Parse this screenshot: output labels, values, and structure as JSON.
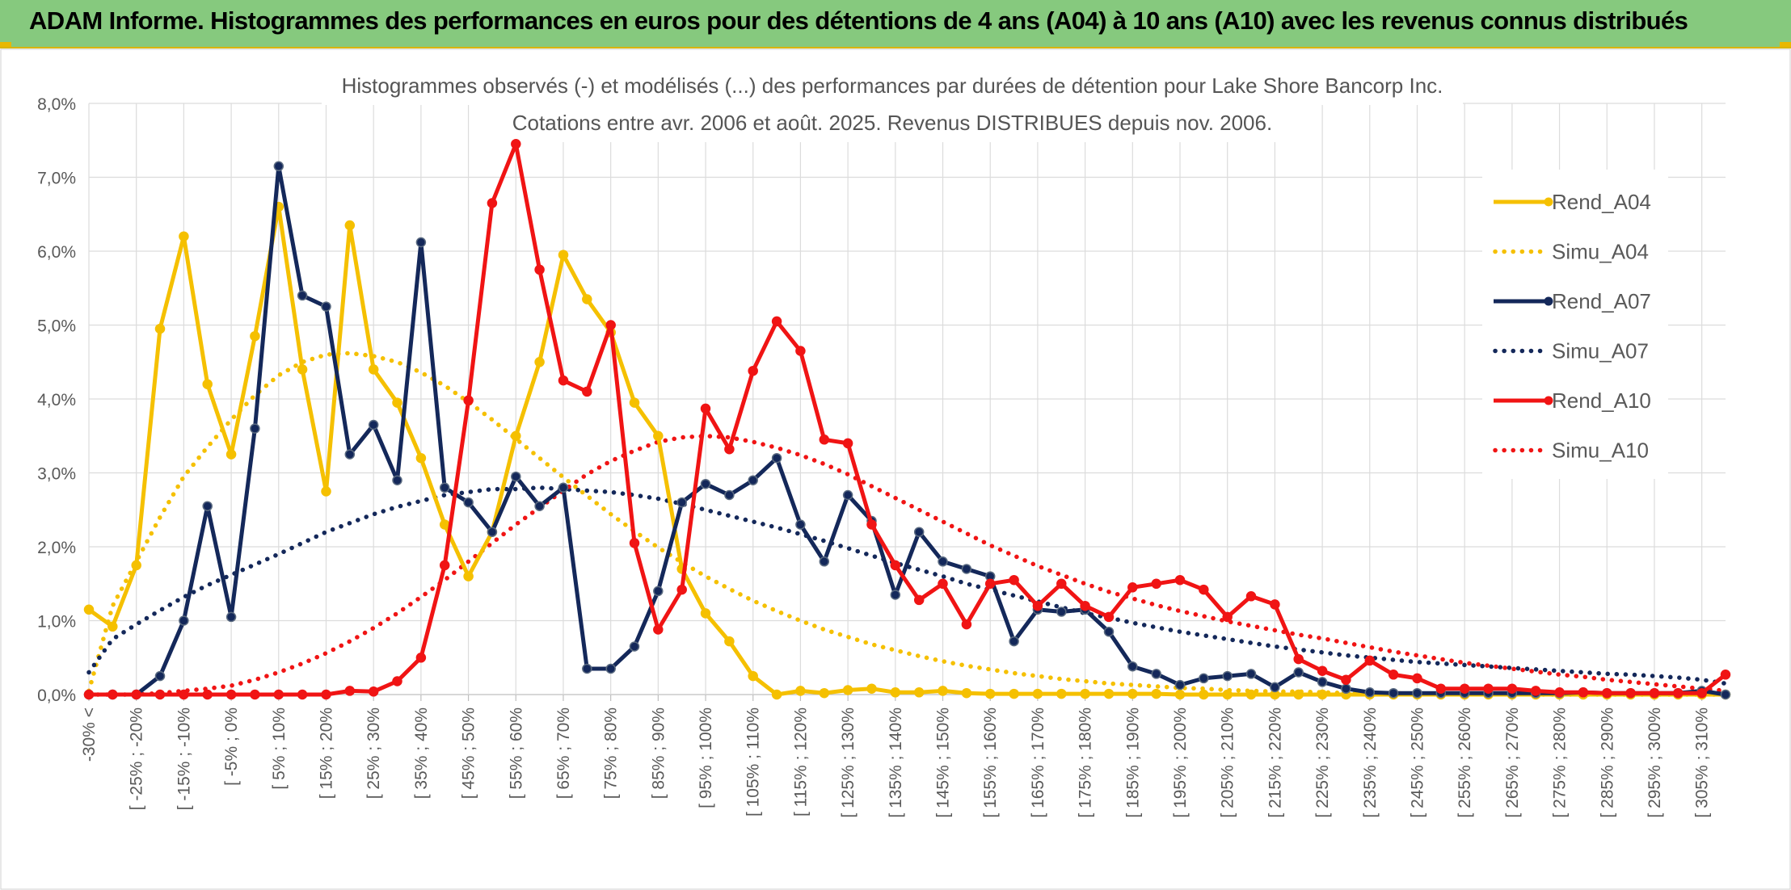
{
  "banner": {
    "title": "ADAM Informe. Histogrammes des performances en euros pour des détentions de 4 ans (A04) à 10 ans (A10) avec les revenus connus distribués"
  },
  "chart_data": {
    "type": "line",
    "title": "Histogrammes observés (-) et modélisés (...) des performances par durées de détention pour Lake Shore Bancorp Inc.",
    "subtitle": "Cotations entre avr. 2006 et août. 2025. Revenus DISTRIBUES depuis nov. 2006.",
    "xlabel": "",
    "ylabel": "",
    "ylim": [
      0,
      8
    ],
    "y_ticks": [
      "0,0%",
      "1,0%",
      "2,0%",
      "3,0%",
      "4,0%",
      "5,0%",
      "6,0%",
      "7,0%",
      "8,0%"
    ],
    "grid": true,
    "legend_position": "right",
    "x_tick_labels": [
      "-30% <",
      "[ -25% ; -20%",
      "[ -15% ; -10%",
      "[ -5% ; 0%",
      "[ 5% ; 10%",
      "[ 15% ; 20%",
      "[ 25% ; 30%",
      "[ 35% ; 40%",
      "[ 45% ; 50%",
      "[ 55% ; 60%",
      "[ 65% ; 70%",
      "[ 75% ; 80%",
      "[ 85% ; 90%",
      "[ 95% ; 100%",
      "[ 105% ; 110%",
      "[ 115% ; 120%",
      "[ 125% ; 130%",
      "[ 135% ; 140%",
      "[ 145% ; 150%",
      "[ 155% ; 160%",
      "[ 165% ; 170%",
      "[ 175% ; 180%",
      "[ 185% ; 190%",
      "[ 195% ; 200%",
      "[ 205% ; 210%",
      "[ 215% ; 220%",
      "[ 225% ; 230%",
      "[ 235% ; 240%",
      "[ 245% ; 250%",
      "[ 255% ; 260%",
      "[ 265% ; 270%",
      "[ 275% ; 280%",
      "[ 285% ; 290%",
      "[ 295% ; 300%",
      "[ 305% ; 310%"
    ],
    "series": [
      {
        "name": "Rend_A04",
        "style": "solid",
        "marker": true,
        "color": "#f5c000",
        "values": [
          1.15,
          0.92,
          1.75,
          4.95,
          6.2,
          4.2,
          3.25,
          4.85,
          6.6,
          4.4,
          2.75,
          6.35,
          4.4,
          3.95,
          3.2,
          2.3,
          1.6,
          2.2,
          3.5,
          4.5,
          5.95,
          5.35,
          4.9,
          3.95,
          3.5,
          1.7,
          1.1,
          0.72,
          0.25,
          0.0,
          0.05,
          0.02,
          0.06,
          0.08,
          0.03,
          0.03,
          0.05,
          0.02,
          0.01,
          0.01,
          0.01,
          0.01,
          0.01,
          0.01,
          0.01,
          0.01,
          0.0,
          0.0,
          0.0,
          0.0,
          0.0,
          0.0,
          0.0,
          0.0,
          0.0,
          0.0,
          0.0,
          0.0,
          0.0,
          0.0,
          0.0,
          0.0,
          0.0,
          0.0,
          0.0,
          0.0,
          0.0,
          0.0,
          0.0,
          0.0
        ]
      },
      {
        "name": "Simu_A04",
        "style": "dotted",
        "marker": false,
        "color": "#f5c000",
        "values": [
          0.05,
          1.2,
          1.8,
          2.4,
          2.95,
          3.35,
          3.72,
          4.05,
          4.32,
          4.5,
          4.6,
          4.62,
          4.58,
          4.5,
          4.36,
          4.18,
          3.96,
          3.72,
          3.46,
          3.2,
          2.94,
          2.69,
          2.44,
          2.21,
          1.99,
          1.79,
          1.6,
          1.43,
          1.27,
          1.13,
          1.0,
          0.88,
          0.78,
          0.68,
          0.6,
          0.52,
          0.45,
          0.39,
          0.34,
          0.29,
          0.25,
          0.21,
          0.18,
          0.15,
          0.13,
          0.11,
          0.09,
          0.08,
          0.06,
          0.05,
          0.04,
          0.04,
          0.03,
          0.02,
          0.02,
          0.02,
          0.01,
          0.01,
          0.01,
          0.01,
          0.01,
          0.0,
          0.0,
          0.0,
          0.0,
          0.0,
          0.0,
          0.0,
          0.0,
          0.0
        ]
      },
      {
        "name": "Rend_A07",
        "style": "solid",
        "marker": true,
        "color": "#14285a",
        "values": [
          0.0,
          0.0,
          0.0,
          0.25,
          1.0,
          2.55,
          1.05,
          3.6,
          7.15,
          5.4,
          5.25,
          3.25,
          3.65,
          2.9,
          6.12,
          2.8,
          2.6,
          2.2,
          2.95,
          2.55,
          2.8,
          0.35,
          0.35,
          0.65,
          1.4,
          2.6,
          2.85,
          2.7,
          2.9,
          3.2,
          2.3,
          1.8,
          2.7,
          2.35,
          1.35,
          2.2,
          1.8,
          1.7,
          1.6,
          0.72,
          1.15,
          1.12,
          1.15,
          0.85,
          0.38,
          0.28,
          0.13,
          0.22,
          0.25,
          0.28,
          0.1,
          0.3,
          0.17,
          0.08,
          0.03,
          0.02,
          0.02,
          0.02,
          0.02,
          0.02,
          0.02,
          0.02,
          0.02,
          0.03,
          0.02,
          0.02,
          0.02,
          0.02,
          0.05,
          0.0
        ]
      },
      {
        "name": "Simu_A07",
        "style": "dotted",
        "marker": false,
        "color": "#14285a",
        "values": [
          0.3,
          0.75,
          0.95,
          1.14,
          1.32,
          1.48,
          1.62,
          1.76,
          1.9,
          2.05,
          2.2,
          2.32,
          2.44,
          2.54,
          2.62,
          2.7,
          2.74,
          2.78,
          2.78,
          2.8,
          2.78,
          2.76,
          2.74,
          2.7,
          2.65,
          2.58,
          2.5,
          2.42,
          2.34,
          2.26,
          2.17,
          2.08,
          1.98,
          1.88,
          1.78,
          1.69,
          1.6,
          1.5,
          1.42,
          1.34,
          1.26,
          1.18,
          1.1,
          1.04,
          0.97,
          0.91,
          0.85,
          0.8,
          0.75,
          0.7,
          0.65,
          0.61,
          0.57,
          0.53,
          0.5,
          0.47,
          0.44,
          0.42,
          0.4,
          0.38,
          0.36,
          0.34,
          0.32,
          0.3,
          0.28,
          0.27,
          0.25,
          0.23,
          0.2,
          0.15
        ]
      },
      {
        "name": "Rend_A10",
        "style": "solid",
        "marker": true,
        "color": "#f01414",
        "values": [
          0.0,
          0.0,
          0.0,
          0.0,
          0.0,
          0.0,
          0.0,
          0.0,
          0.0,
          0.0,
          0.0,
          0.05,
          0.04,
          0.18,
          0.5,
          1.75,
          3.98,
          6.65,
          7.45,
          5.75,
          4.25,
          4.1,
          5.0,
          2.05,
          0.88,
          1.42,
          3.87,
          3.32,
          4.38,
          5.05,
          4.65,
          3.45,
          3.4,
          2.3,
          1.75,
          1.28,
          1.5,
          0.95,
          1.5,
          1.55,
          1.2,
          1.5,
          1.2,
          1.05,
          1.45,
          1.5,
          1.55,
          1.42,
          1.05,
          1.33,
          1.22,
          0.48,
          0.32,
          0.2,
          0.46,
          0.27,
          0.22,
          0.08,
          0.08,
          0.08,
          0.08,
          0.05,
          0.03,
          0.03,
          0.02,
          0.02,
          0.02,
          0.02,
          0.02,
          0.27
        ]
      },
      {
        "name": "Simu_A10",
        "style": "dotted",
        "marker": false,
        "color": "#f01414",
        "values": [
          0.0,
          0.0,
          0.0,
          0.02,
          0.05,
          0.08,
          0.12,
          0.2,
          0.3,
          0.42,
          0.56,
          0.72,
          0.9,
          1.1,
          1.32,
          1.55,
          1.8,
          2.05,
          2.3,
          2.53,
          2.76,
          2.98,
          3.16,
          3.3,
          3.42,
          3.48,
          3.5,
          3.48,
          3.42,
          3.34,
          3.24,
          3.12,
          2.98,
          2.82,
          2.66,
          2.5,
          2.34,
          2.18,
          2.02,
          1.88,
          1.74,
          1.62,
          1.5,
          1.39,
          1.3,
          1.21,
          1.13,
          1.06,
          0.99,
          0.93,
          0.87,
          0.81,
          0.76,
          0.7,
          0.64,
          0.58,
          0.53,
          0.48,
          0.43,
          0.39,
          0.35,
          0.31,
          0.27,
          0.24,
          0.2,
          0.17,
          0.14,
          0.11,
          0.08,
          0.05
        ]
      }
    ]
  }
}
